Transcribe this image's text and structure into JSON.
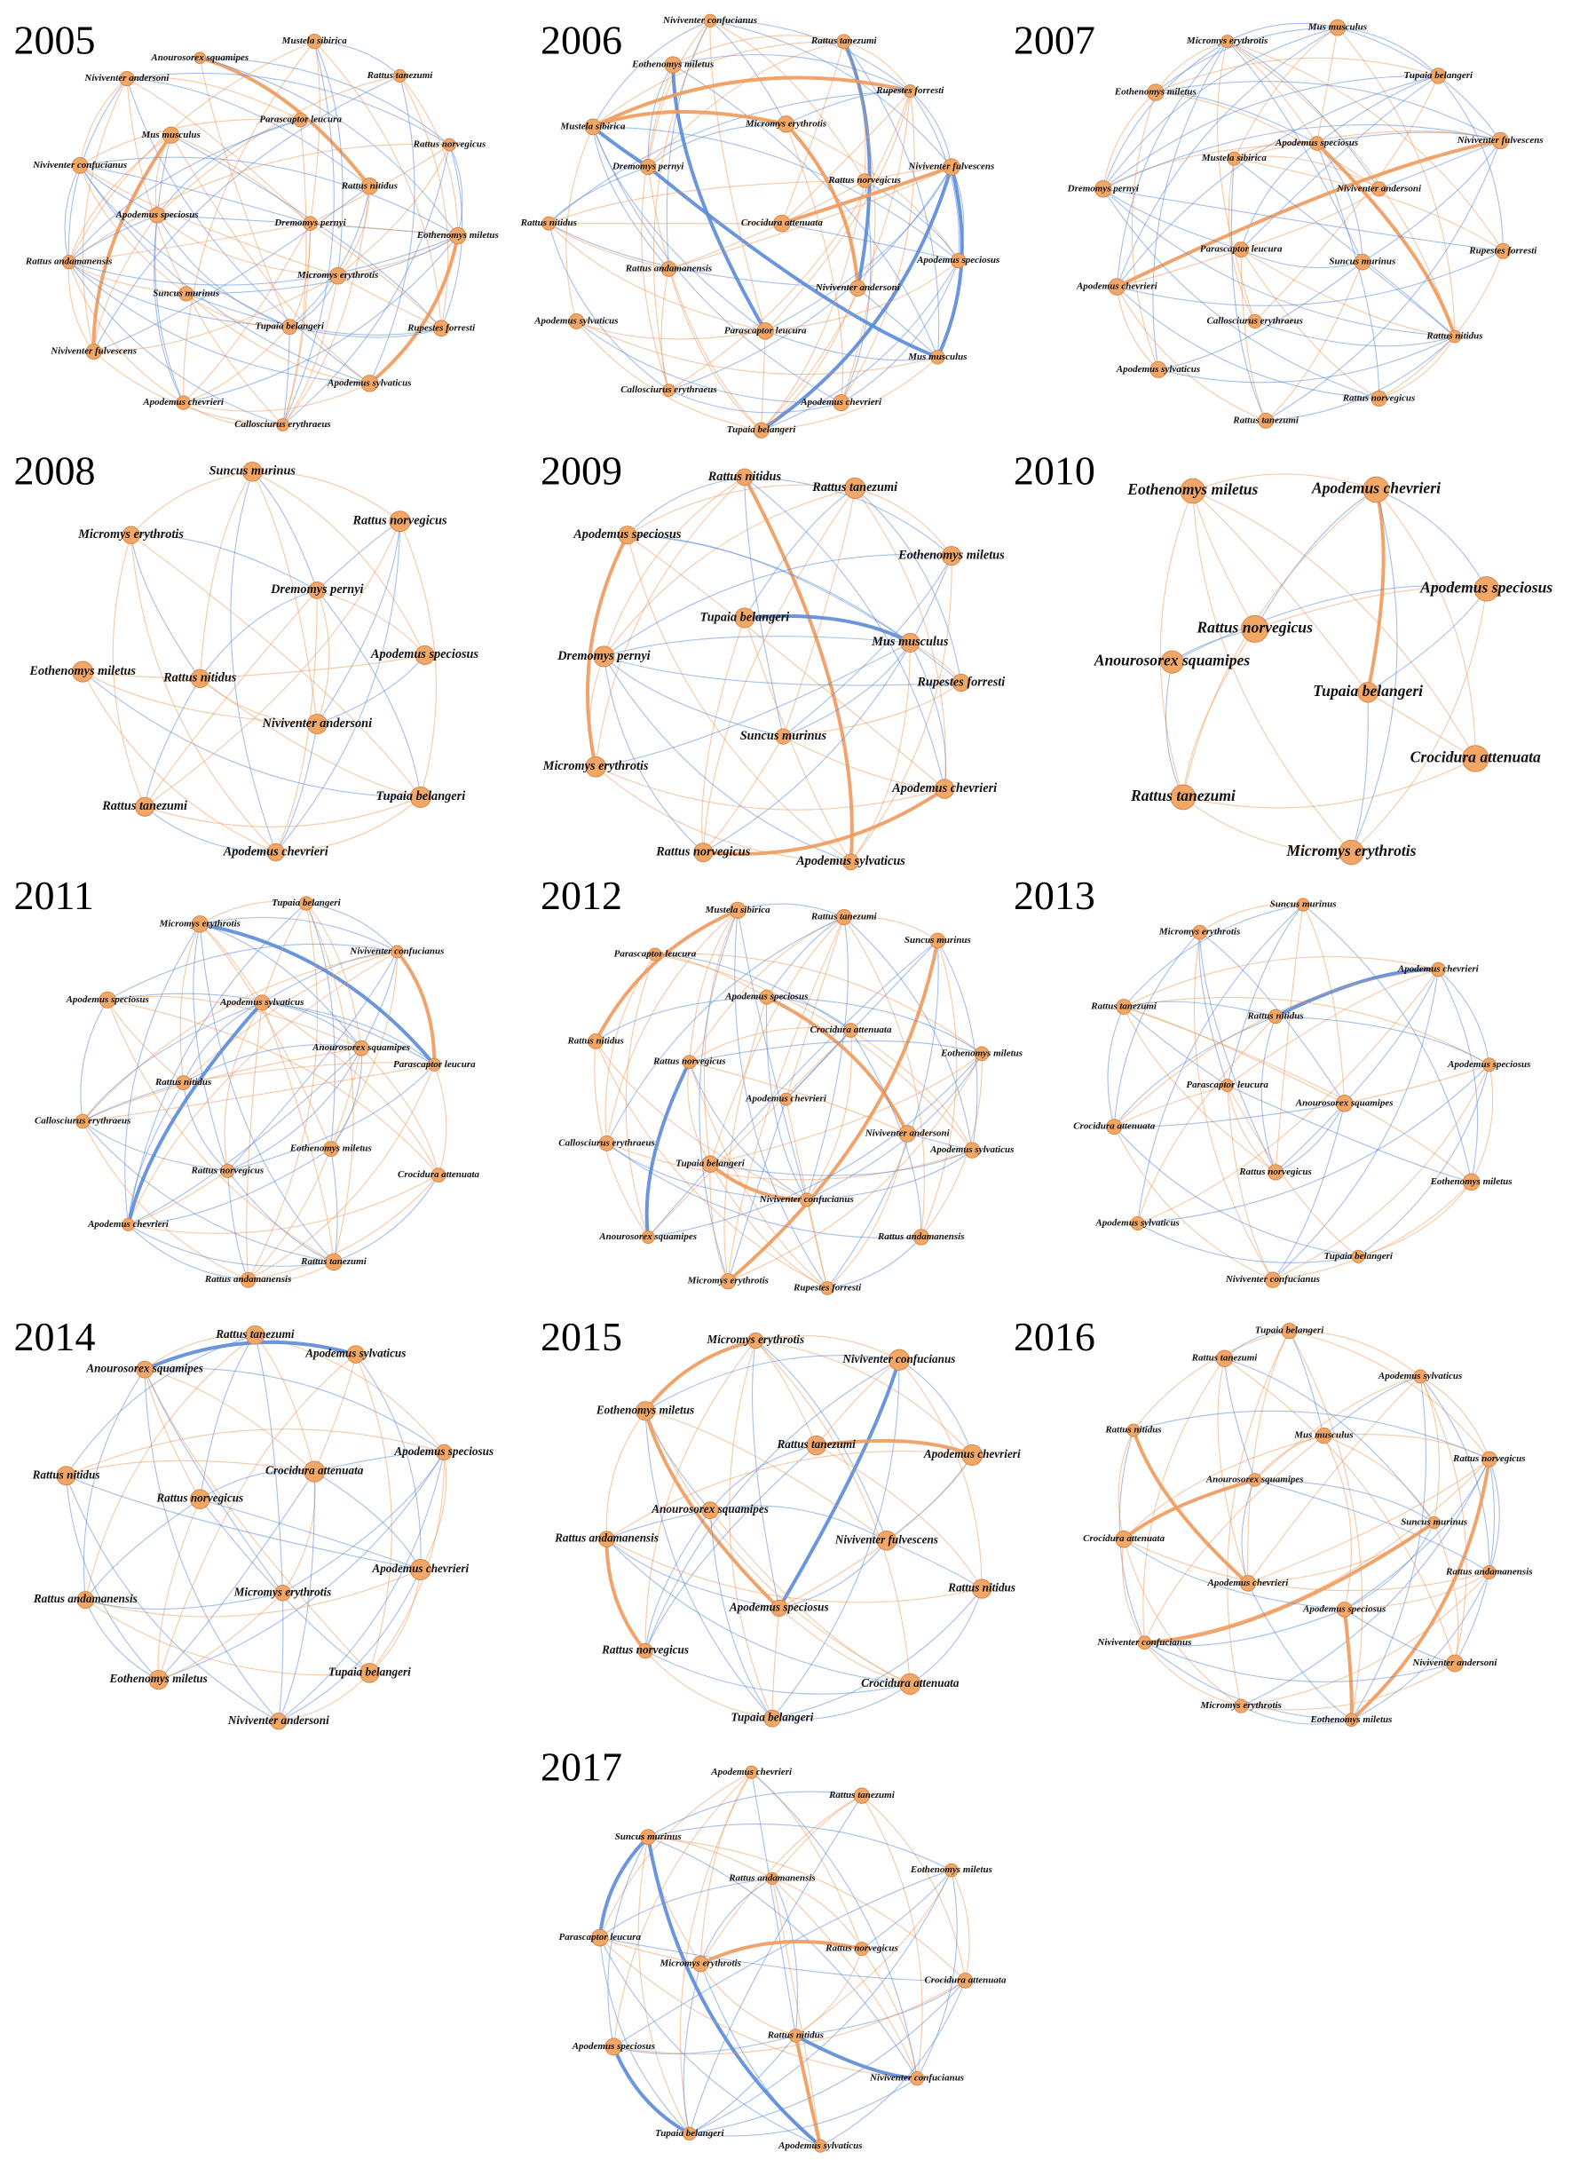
{
  "panels": [
    {
      "year": "2005",
      "nodes": [
        "Anourosorex squamipes",
        "Mustela sibirica",
        "Niviventer andersoni",
        "Rattus tanezumi",
        "Parascaptor leucura",
        "Mus musculus",
        "Rattus norvegicus",
        "Niviventer confucianus",
        "Rattus nitidus",
        "Apodemus speciosus",
        "Dremomys pernyi",
        "Eothenomys miletus",
        "Rattus andamanensis",
        "Micromys erythrotis",
        "Suncus murinus",
        "Tupaia belangeri",
        "Rupestes forresti",
        "Niviventer fulvescens",
        "Apodemus sylvaticus",
        "Apodemus chevrieri",
        "Callosciurus erythraeus"
      ]
    },
    {
      "year": "2006",
      "nodes": [
        "Niviventer confucianus",
        "Rattus tanezumi",
        "Eothenomys miletus",
        "Rupestes forresti",
        "Mustela sibirica",
        "Micromys erythrotis",
        "Dremomys pernyi",
        "Rattus norvegicus",
        "Niviventer fulvescens",
        "Rattus nitidus",
        "Crocidura attenuata",
        "Apodemus speciosus",
        "Rattus andamanensis",
        "Niviventer andersoni",
        "Apodemus sylvaticus",
        "Parascaptor leucura",
        "Mus musculus",
        "Callosciurus erythraeus",
        "Apodemus chevrieri",
        "Tupaia belangeri"
      ]
    },
    {
      "year": "2007",
      "nodes": [
        "Micromys erythrotis",
        "Mus musculus",
        "Eothenomys miletus",
        "Tupaia belangeri",
        "Apodemus speciosus",
        "Niviventer fulvescens",
        "Mustela sibirica",
        "Dremomys pernyi",
        "Niviventer andersoni",
        "Parascaptor leucura",
        "Suncus murinus",
        "Rupestes forresti",
        "Apodemus chevrieri",
        "Callosciurus erythraeus",
        "Rattus nitidus",
        "Apodemus sylvaticus",
        "Rattus norvegicus",
        "Rattus tanezumi"
      ]
    },
    {
      "year": "2008",
      "nodes": [
        "Suncus murinus",
        "Micromys erythrotis",
        "Rattus norvegicus",
        "Dremomys pernyi",
        "Eothenomys miletus",
        "Rattus nitidus",
        "Apodemus speciosus",
        "Niviventer andersoni",
        "Rattus tanezumi",
        "Tupaia belangeri",
        "Apodemus chevrieri"
      ]
    },
    {
      "year": "2009",
      "nodes": [
        "Rattus nitidus",
        "Rattus tanezumi",
        "Apodemus speciosus",
        "Eothenomys miletus",
        "Tupaia belangeri",
        "Mus musculus",
        "Dremomys pernyi",
        "Rupestes forresti",
        "Suncus murinus",
        "Micromys erythrotis",
        "Apodemus chevrieri",
        "Rattus norvegicus",
        "Apodemus sylvaticus"
      ]
    },
    {
      "year": "2010",
      "nodes": [
        "Eothenomys miletus",
        "Apodemus chevrieri",
        "Apodemus speciosus",
        "Rattus norvegicus",
        "Anourosorex squamipes",
        "Tupaia belangeri",
        "Crocidura attenuata",
        "Rattus tanezumi",
        "Micromys erythrotis"
      ]
    },
    {
      "year": "2011",
      "nodes": [
        "Micromys erythrotis",
        "Tupaia belangeri",
        "Niviventer confucianus",
        "Apodemus speciosus",
        "Apodemus sylvaticus",
        "Anourosorex squamipes",
        "Parascaptor leucura",
        "Rattus nitidus",
        "Callosciurus erythraeus",
        "Eothenomys miletus",
        "Crocidura attenuata",
        "Rattus norvegicus",
        "Apodemus chevrieri",
        "Rattus tanezumi",
        "Rattus andamanensis"
      ]
    },
    {
      "year": "2012",
      "nodes": [
        "Mustela sibirica",
        "Rattus tanezumi",
        "Suncus murinus",
        "Parascaptor leucura",
        "Apodemus speciosus",
        "Crocidura attenuata",
        "Rattus nitidus",
        "Eothenomys miletus",
        "Rattus norvegicus",
        "Apodemus chevrieri",
        "Niviventer andersoni",
        "Callosciurus erythraeus",
        "Apodemus sylvaticus",
        "Tupaia belangeri",
        "Niviventer confucianus",
        "Anourosorex squamipes",
        "Rattus andamanensis",
        "Micromys erythrotis",
        "Rupestes forresti"
      ]
    },
    {
      "year": "2013",
      "nodes": [
        "Suncus murinus",
        "Micromys erythrotis",
        "Apodemus chevrieri",
        "Rattus tanezumi",
        "Rattus nitidus",
        "Apodemus speciosus",
        "Parascaptor leucura",
        "Anourosorex squamipes",
        "Crocidura attenuata",
        "Rattus norvegicus",
        "Eothenomys miletus",
        "Apodemus sylvaticus",
        "Tupaia belangeri",
        "Niviventer confucianus"
      ]
    },
    {
      "year": "2014",
      "nodes": [
        "Rattus tanezumi",
        "Apodemus sylvaticus",
        "Anourosorex squamipes",
        "Apodemus speciosus",
        "Crocidura attenuata",
        "Rattus nitidus",
        "Rattus norvegicus",
        "Apodemus chevrieri",
        "Rattus andamanensis",
        "Micromys erythrotis",
        "Tupaia belangeri",
        "Eothenomys miletus",
        "Niviventer andersoni"
      ]
    },
    {
      "year": "2015",
      "nodes": [
        "Micromys erythrotis",
        "Niviventer confucianus",
        "Eothenomys miletus",
        "Rattus tanezumi",
        "Apodemus chevrieri",
        "Anourosorex squamipes",
        "Rattus andamanensis",
        "Niviventer fulvescens",
        "Rattus nitidus",
        "Apodemus speciosus",
        "Rattus norvegicus",
        "Crocidura attenuata",
        "Tupaia belangeri"
      ]
    },
    {
      "year": "2016",
      "nodes": [
        "Tupaia belangeri",
        "Rattus tanezumi",
        "Apodemus sylvaticus",
        "Rattus nitidus",
        "Mus musculus",
        "Rattus norvegicus",
        "Anourosorex squamipes",
        "Suncus murinus",
        "Crocidura attenuata",
        "Rattus andamanensis",
        "Apodemus chevrieri",
        "Apodemus speciosus",
        "Niviventer confucianus",
        "Niviventer andersoni",
        "Micromys erythrotis",
        "Eothenomys miletus"
      ]
    },
    {
      "year": "2017",
      "nodes": [
        "Apodemus chevrieri",
        "Rattus tanezumi",
        "Suncus murinus",
        "Eothenomys miletus",
        "Rattus andamanensis",
        "Parascaptor leucura",
        "Rattus norvegicus",
        "Micromys erythrotis",
        "Crocidura attenuata",
        "Rattus nitidus",
        "Apodemus speciosus",
        "Niviventer confucianus",
        "Tupaia belangeri",
        "Apodemus sylvaticus"
      ]
    }
  ]
}
